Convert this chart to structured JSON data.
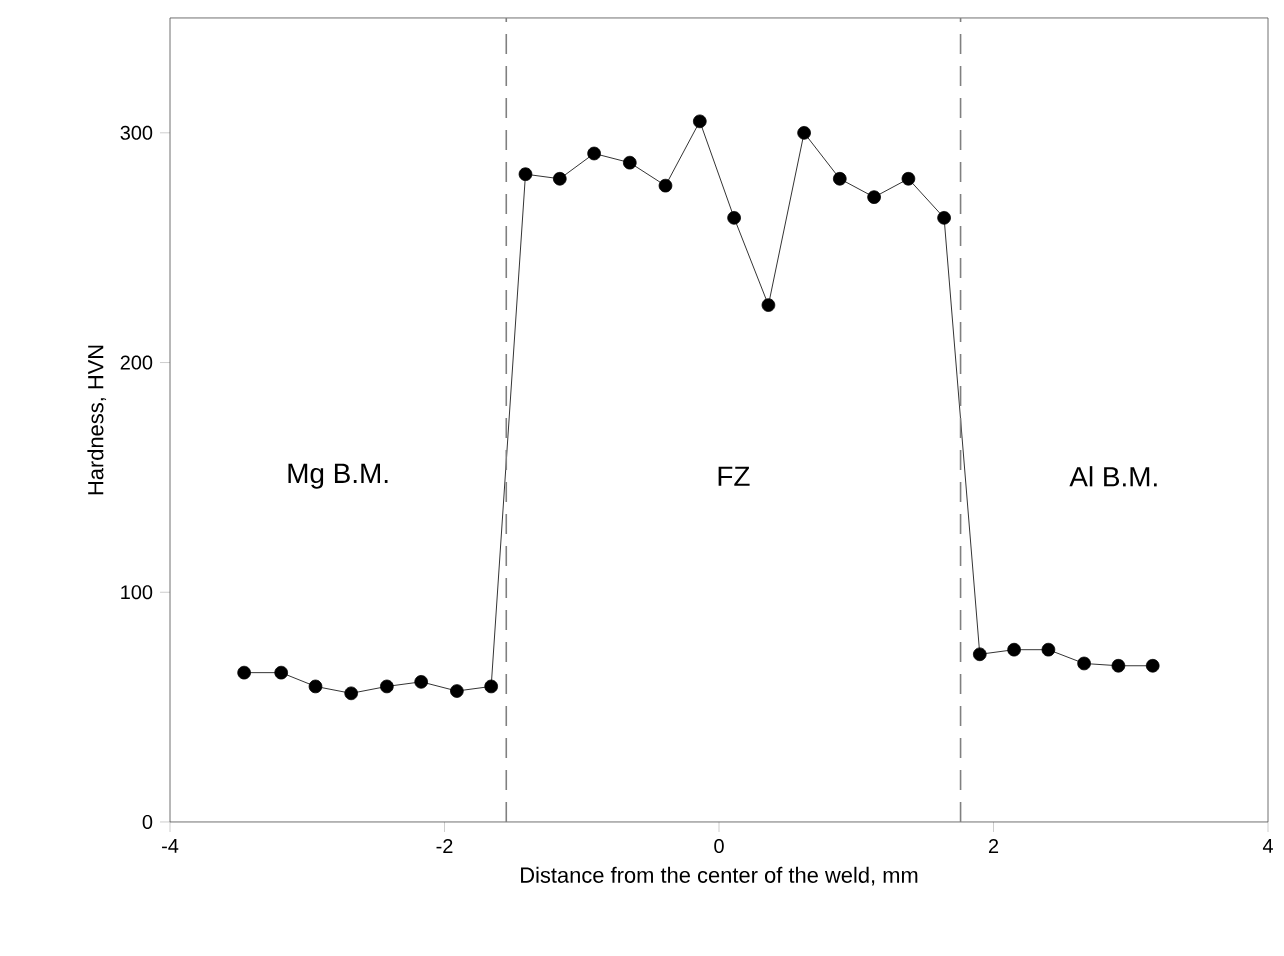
{
  "chart_data": {
    "type": "line",
    "xlabel": "Distance from the center of the weld, mm",
    "ylabel": "Hardness, HVN",
    "series": [
      {
        "color": "#000000",
        "x": [
          -3.46,
          -3.19,
          -2.94,
          -2.68,
          -2.42,
          -2.17,
          -1.91,
          -1.66,
          -1.41,
          -1.16,
          -0.91,
          -0.65,
          -0.39,
          -0.14,
          0.11,
          0.36,
          0.62,
          0.88,
          1.13,
          1.38,
          1.64,
          1.9,
          2.15,
          2.4,
          2.66,
          2.91,
          3.16
        ],
        "values": [
          65,
          65,
          59,
          56,
          59,
          61,
          57,
          59,
          282,
          280,
          291,
          287,
          277,
          305,
          263,
          225,
          300,
          280,
          272,
          280,
          263,
          73,
          75,
          75,
          69,
          68,
          68
        ]
      }
    ],
    "xlim": [
      -4,
      4
    ],
    "ylim": [
      0,
      350
    ],
    "xticks": [
      -4,
      -2,
      0,
      2,
      4
    ],
    "yticks": [
      0,
      100,
      200,
      300
    ],
    "marker": "circle",
    "line_style": "solid",
    "grid": false,
    "ref_lines": [
      {
        "axis": "x",
        "value": -1.55,
        "color": "#808080",
        "line_style": "dashed"
      },
      {
        "axis": "x",
        "value": 1.76,
        "color": "#808080",
        "line_style": "dashed"
      }
    ],
    "annotations": [
      "Mg B.M.",
      "FZ",
      "Al B.M."
    ]
  }
}
